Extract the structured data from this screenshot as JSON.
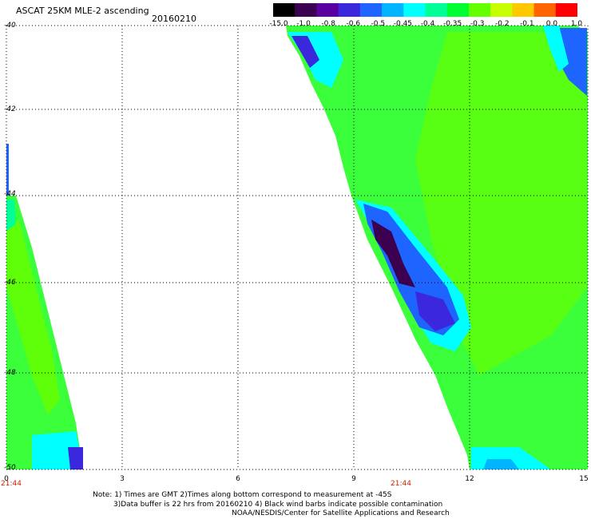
{
  "header": {
    "title": "ASCAT 25KM MLE-2 ascending",
    "date": "20160210"
  },
  "colorbar": {
    "tick_labels": [
      "-15.0",
      "-1.0",
      "-0.8",
      "-0.6",
      "-0.5",
      "-0.45",
      "-0.4",
      "-0.35",
      "-0.3",
      "-0.2",
      "-0.1",
      "0.0",
      "1.0"
    ],
    "colors": [
      "#000000",
      "#3c0050",
      "#5a00a0",
      "#3c28dc",
      "#1e64ff",
      "#00b4ff",
      "#00ffff",
      "#00ff96",
      "#00ff32",
      "#64ff00",
      "#c8ff00",
      "#ffc800",
      "#ff6400",
      "#ff0000"
    ]
  },
  "axes": {
    "y_ticks": [
      "-40",
      "-42",
      "-44",
      "-46",
      "-48",
      "-50"
    ],
    "x_ticks": [
      "0",
      "3",
      "6",
      "9",
      "12",
      "15"
    ],
    "times": [
      "21:44",
      "21:44"
    ]
  },
  "notes": {
    "line1": "Note: 1) Times are GMT 2)Times along bottom correspond to measurement at -45S",
    "line2": "3)Data buffer is 22 hrs from 20160210 4) Black wind barbs indicate possible contamination",
    "line3": "NOAA/NESDIS/Center for Satellite Applications and Research"
  }
}
